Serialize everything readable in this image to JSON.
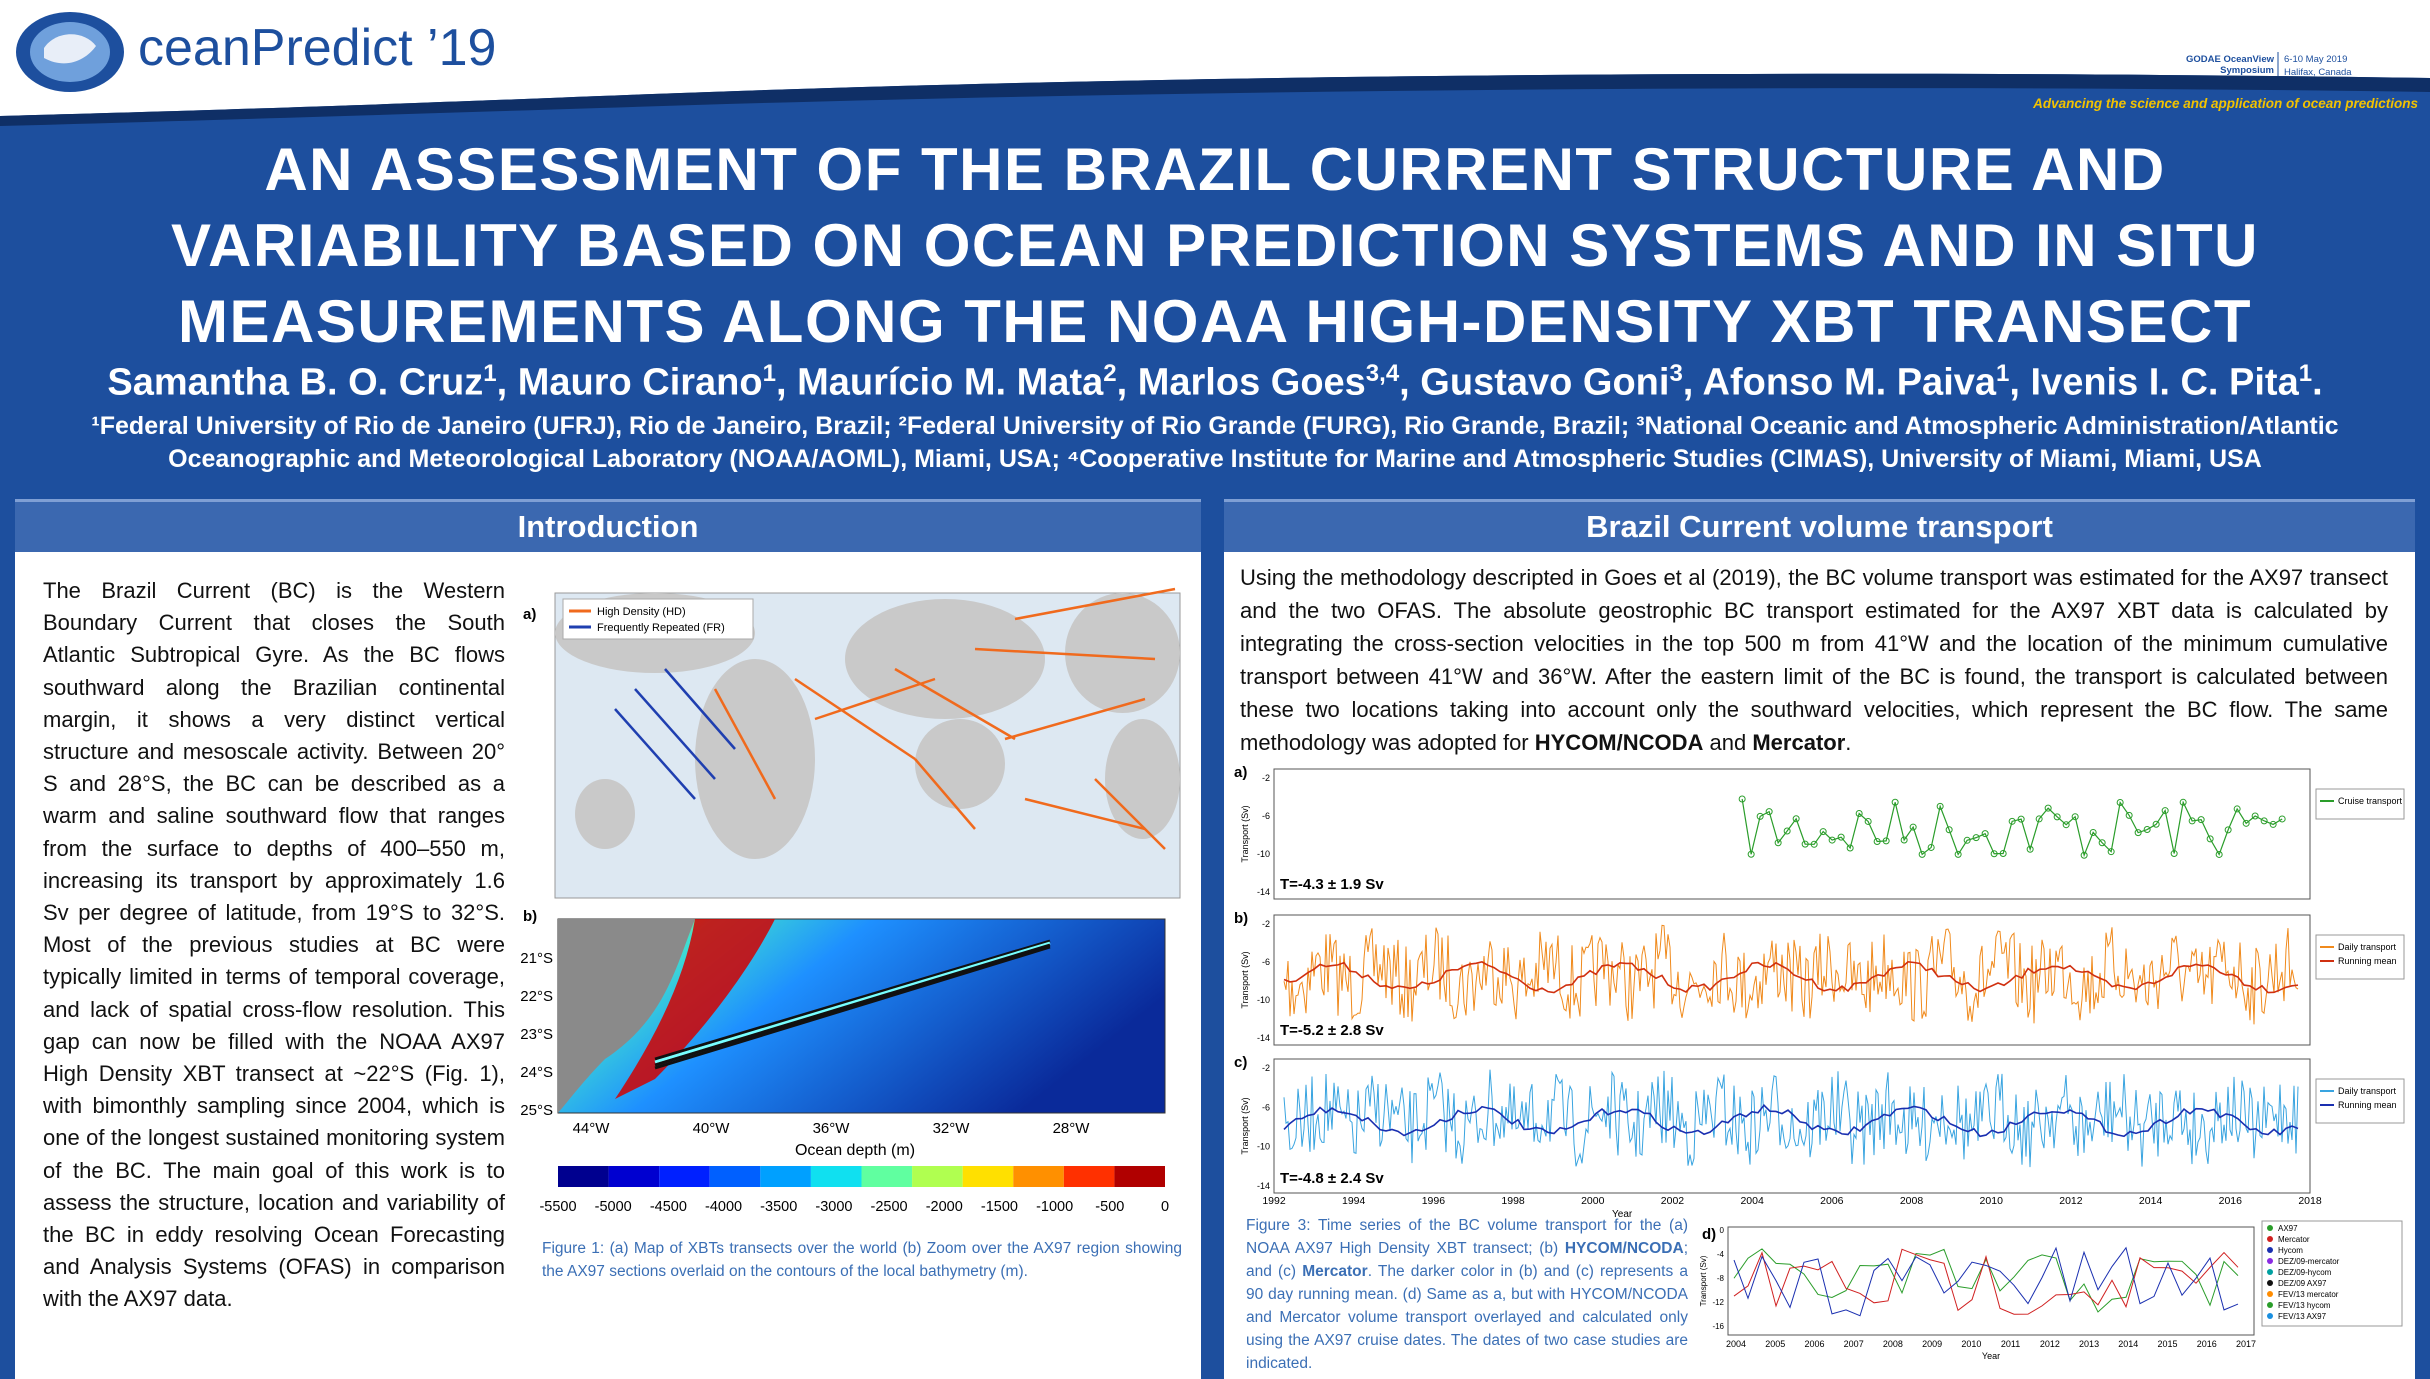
{
  "header": {
    "logo_text": "ceanPredict ’19",
    "symposium": "GODAE OceanView Symposium",
    "dates": "6-10 May 2019",
    "place": "Halifax, Canada",
    "tagline": "Advancing the science and application of ocean predictions"
  },
  "title": [
    "AN ASSESSMENT OF THE BRAZIL CURRENT STRUCTURE AND",
    "VARIABILITY BASED ON OCEAN PREDICTION SYSTEMS AND IN SITU",
    "MEASUREMENTS ALONG THE NOAA HIGH-DENSITY XBT TRANSECT"
  ],
  "authors": [
    {
      "name": "Samantha B. O. Cruz",
      "sup": "1",
      "after": ","
    },
    {
      "name": "Mauro Cirano",
      "sup": "1",
      "after": ","
    },
    {
      "name": "Maurício M. Mata",
      "sup": "2",
      "after": ","
    },
    {
      "name": "Marlos Goes",
      "sup": "3,4",
      "after": ","
    },
    {
      "name": "Gustavo Goni",
      "sup": "3",
      "after": ","
    },
    {
      "name": "Afonso M. Paiva",
      "sup": "1",
      "after": ","
    },
    {
      "name": "Ivenis I. C. Pita",
      "sup": "1",
      "after": "."
    }
  ],
  "affiliations": [
    "¹Federal University of Rio de Janeiro (UFRJ), Rio de Janeiro, Brazil; ²Federal University of Rio Grande (FURG), Rio Grande, Brazil; ³National Oceanic and Atmospheric Administration/Atlantic",
    "Oceanographic and Meteorological Laboratory (NOAA/AOML), Miami, USA; ⁴Cooperative Institute for Marine and Atmospheric Studies (CIMAS), University of Miami, Miami, USA"
  ],
  "introduction": {
    "heading": "Introduction",
    "text": "The Brazil Current (BC) is the Western Boundary Current that closes the South Atlantic Subtropical Gyre. As the BC flows southward along the Brazilian continental margin, it shows a very distinct vertical structure and mesoscale activity. Between 20° S and 28°S, the BC can be described as a warm and saline southward flow that ranges from the surface to depths of 400–550 m, increasing its transport by approximately 1.6 Sv per degree of latitude, from 19°S to 32°S. Most of the previous studies at BC were typically limited in terms of temporal coverage, and lack of spatial cross-flow resolution. This gap can now be filled with the NOAA AX97 High Density XBT transect at ~22°S (Fig. 1), with bimonthly sampling since 2004, which is one of the longest sustained monitoring system of the BC. The main goal of this work is to assess the structure, location and variability of the BC in eddy resolving Ocean Forecasting and Analysis Systems (OFAS) in comparison with the AX97 data.",
    "figure": {
      "label_a": "a)",
      "label_b": "b)",
      "legend": [
        "High Density (HD)",
        "Frequently Repeated (FR)"
      ],
      "lat_labels": [
        "21°S",
        "22°S",
        "23°S",
        "24°S",
        "25°S"
      ],
      "lon_labels": [
        "44°W",
        "40°W",
        "36°W",
        "32°W",
        "28°W"
      ],
      "xlabel": "Ocean depth (m)",
      "colorbar_ticks": [
        "-5500",
        "-5000",
        "-4500",
        "-4000",
        "-3500",
        "-3000",
        "-2500",
        "-2000",
        "-1500",
        "-1000",
        "-500",
        "0"
      ],
      "caption": "Figure 1: (a) Map of XBTs transects over the world (b) Zoom over the AX97 region showing the AX97 sections overlaid on the contours of the local bathymetry (m)."
    }
  },
  "transport": {
    "heading": "Brazil Current volume transport",
    "text_parts": [
      {
        "text": "Using the methodology descripted in Goes et al (2019), the BC volume transport was estimated for the AX97 transect and the two OFAS. The absolute geostrophic BC transport estimated for the AX97 XBT data is calculated by integrating the cross-section velocities in the top 500 m from 41°W and the location of the minimum cumulative transport between 41°W and 36°W. After the eastern limit of the BC is found, the transport is calculated between these two locations taking into account only the southward velocities, which represent the BC flow. The same methodology was adopted for ",
        "bold": false
      },
      {
        "text": "HYCOM/NCODA",
        "bold": true
      },
      {
        "text": " and ",
        "bold": false
      },
      {
        "text": "Mercator",
        "bold": true
      },
      {
        "text": ".",
        "bold": false
      }
    ],
    "figure": {
      "panels": [
        {
          "label": "a)",
          "annotation": "T=-4.3 ± 1.9 Sv",
          "legend": [
            "Cruise transport"
          ]
        },
        {
          "label": "b)",
          "annotation": "T=-5.2 ± 2.8 Sv",
          "legend": [
            "Daily transport",
            "Running mean"
          ]
        },
        {
          "label": "c)",
          "annotation": "T=-4.8 ± 2.4 Sv",
          "legend": [
            "Daily transport",
            "Running mean"
          ]
        }
      ],
      "ylabel": "Transport (Sv)",
      "yticks": [
        "-2",
        "-6",
        "-10",
        "-14"
      ],
      "years": [
        "1992",
        "1994",
        "1996",
        "1998",
        "2000",
        "2002",
        "2004",
        "2006",
        "2008",
        "2010",
        "2012",
        "2014",
        "2016",
        "2018"
      ],
      "xlabel": "Year",
      "panel_d": {
        "label": "d)",
        "yticks": [
          "0",
          "-4",
          "-8",
          "-12",
          "-16"
        ],
        "years": [
          "2004",
          "2005",
          "2006",
          "2007",
          "2008",
          "2009",
          "2010",
          "2011",
          "2012",
          "2013",
          "2014",
          "2015",
          "2016",
          "2017"
        ],
        "legend": [
          "AX97",
          "Mercator",
          "Hycom",
          "DEZ/09-mercator",
          "DEZ/09-hycom",
          "DEZ/09 AX97",
          "FEV/13 mercator",
          "FEV/13 hycom",
          "FEV/13 AX97"
        ]
      },
      "caption_parts": [
        {
          "text": "Figure 3: Time series of the BC volume transport for the (a) NOAA AX97 High Density XBT transect; (b) ",
          "bold": false
        },
        {
          "text": "HYCOM/NCODA",
          "bold": true
        },
        {
          "text": "; and (c) ",
          "bold": false
        },
        {
          "text": "Mercator",
          "bold": true
        },
        {
          "text": ". The darker color in (b) and (c) represents a 90 day running mean. (d) Same as a, but with HYCOM/NCODA and Mercator volume transport overlayed and calculated only using the AX97 cruise dates. The dates of two case studies are indicated.",
          "bold": false
        }
      ]
    }
  }
}
